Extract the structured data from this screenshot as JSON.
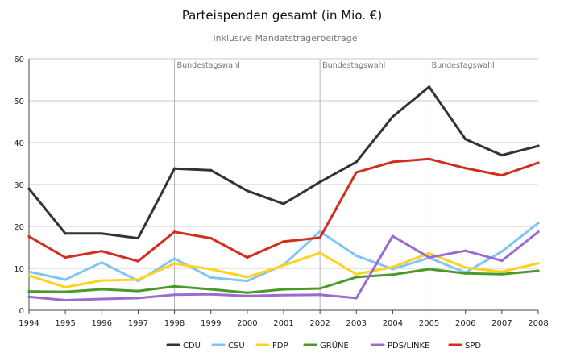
{
  "chart_data": {
    "type": "line",
    "title": "Parteispenden gesamt (in Mio. €)",
    "subtitle": "Inklusive Mandatsträgerbeiträge",
    "xlabel": "",
    "ylabel": "",
    "x": [
      "1994",
      "1995",
      "1996",
      "1997",
      "1998",
      "1999",
      "2000",
      "2001",
      "2002",
      "2003",
      "2004",
      "2005",
      "2006",
      "2007",
      "2008"
    ],
    "ylim": [
      0,
      60
    ],
    "yticks": [
      0,
      10,
      20,
      30,
      40,
      50,
      60
    ],
    "grid": true,
    "legend": "bottom",
    "events": [
      {
        "x": "1998",
        "label": "Bundestagswahl"
      },
      {
        "x": "2002",
        "label": "Bundestagswahl"
      },
      {
        "x": "2005",
        "label": "Bundestagswahl"
      }
    ],
    "series": [
      {
        "name": "CDU",
        "color": "#333333",
        "values": [
          29.0,
          18.3,
          18.3,
          17.2,
          33.8,
          33.4,
          28.5,
          25.4,
          30.6,
          35.4,
          46.2,
          53.3,
          40.8,
          37.0,
          39.2
        ]
      },
      {
        "name": "CSU",
        "color": "#7fc6f5",
        "values": [
          9.2,
          7.3,
          11.4,
          7.0,
          12.3,
          7.8,
          7.0,
          10.8,
          18.8,
          13.0,
          9.8,
          12.5,
          9.0,
          14.0,
          20.8
        ]
      },
      {
        "name": "FDP",
        "color": "#ffd21f",
        "values": [
          8.3,
          5.5,
          7.1,
          7.3,
          11.1,
          9.8,
          7.9,
          10.7,
          13.7,
          8.6,
          10.3,
          13.6,
          10.2,
          9.2,
          11.2
        ]
      },
      {
        "name": "GRÜNE",
        "color": "#4a9a2a",
        "values": [
          4.5,
          4.4,
          5.0,
          4.6,
          5.7,
          5.0,
          4.2,
          5.0,
          5.2,
          7.9,
          8.5,
          9.8,
          8.8,
          8.6,
          9.4
        ]
      },
      {
        "name": "PDS/LINKE",
        "color": "#9b6cd0",
        "values": [
          3.2,
          2.4,
          2.7,
          2.9,
          3.7,
          3.8,
          3.4,
          3.6,
          3.7,
          2.9,
          17.7,
          12.6,
          14.2,
          11.8,
          18.7
        ]
      },
      {
        "name": "SPD",
        "color": "#d22e1e",
        "values": [
          17.6,
          12.6,
          14.1,
          11.7,
          18.7,
          17.2,
          12.6,
          16.4,
          17.3,
          32.9,
          35.4,
          36.1,
          33.9,
          32.2,
          35.2
        ]
      }
    ]
  }
}
